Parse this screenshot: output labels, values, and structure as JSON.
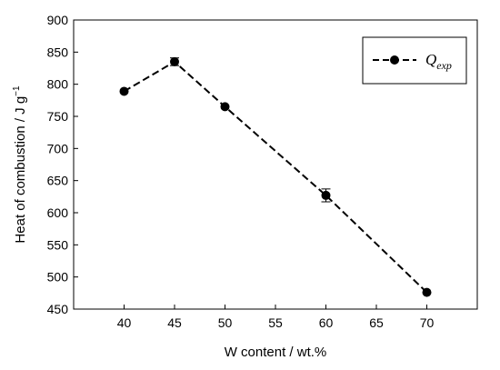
{
  "chart_data": {
    "type": "line",
    "title": "",
    "xlabel": "W content / wt.%",
    "ylabel_main": "Heat of combustion / J g",
    "ylabel_sup": "−1",
    "xlim": [
      35,
      75
    ],
    "ylim": [
      450,
      900
    ],
    "x_ticks": [
      40,
      45,
      50,
      55,
      60,
      65,
      70
    ],
    "y_ticks": [
      450,
      500,
      550,
      600,
      650,
      700,
      750,
      800,
      850,
      900
    ],
    "grid": false,
    "legend_position": "top-right",
    "series": [
      {
        "name_main": "Q",
        "name_sub": "exp",
        "x": [
          40,
          45,
          50,
          60,
          70
        ],
        "y": [
          789,
          835,
          765,
          627,
          476
        ],
        "error": [
          0,
          6,
          0,
          10,
          0
        ],
        "line_style": "dashed",
        "marker": "filled-circle",
        "color": "#000000"
      }
    ]
  }
}
